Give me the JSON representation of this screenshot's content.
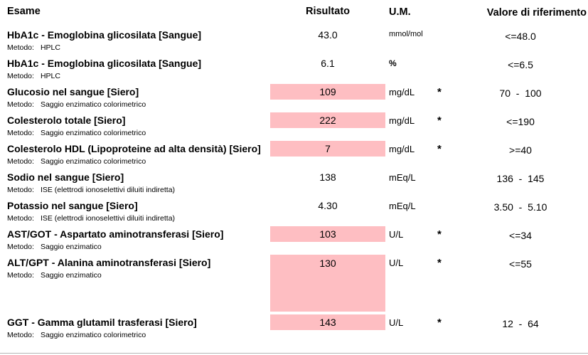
{
  "report": {
    "columns": {
      "esame": "Esame",
      "risultato": "Risultato",
      "um": "U.M.",
      "riferimento": "Valore di riferimento"
    },
    "labels": {
      "metodo": "Metodo:"
    },
    "highlight_color": "#febec2",
    "rows": [
      {
        "name": "HbA1c - Emoglobina glicosilata [Sangue]",
        "method": "HPLC",
        "result": "43.0",
        "unit": "mmol/mol",
        "flag": "",
        "reference": "<=48.0",
        "highlight": false
      },
      {
        "name": "HbA1c - Emoglobina glicosilata [Sangue]",
        "method": "HPLC",
        "result": "6.1",
        "unit": "%",
        "flag": "",
        "reference": "<=6.5",
        "highlight": false
      },
      {
        "name": "Glucosio nel sangue [Siero]",
        "method": "Saggio enzimatico colorimetrico",
        "result": "109",
        "unit": "mg/dL",
        "flag": "*",
        "reference": "70  -  100",
        "highlight": true
      },
      {
        "name": "Colesterolo totale [Siero]",
        "method": "Saggio enzimatico colorimetrico",
        "result": "222",
        "unit": "mg/dL",
        "flag": "*",
        "reference": "<=190",
        "highlight": true
      },
      {
        "name": "Colesterolo HDL (Lipoproteine ad alta densità) [Siero]",
        "method": "Saggio enzimatico colorimetrico",
        "result": "7",
        "unit": "mg/dL",
        "flag": "*",
        "reference": ">=40",
        "highlight": true
      },
      {
        "name": "Sodio nel sangue [Siero]",
        "method": "ISE (elettrodi ionoselettivi diluiti indiretta)",
        "result": "138",
        "unit": "mEq/L",
        "flag": "",
        "reference": "136  -  145",
        "highlight": false
      },
      {
        "name": "Potassio nel sangue [Siero]",
        "method": "ISE (elettrodi ionoselettivi diluiti indiretta)",
        "result": "4.30",
        "unit": "mEq/L",
        "flag": "",
        "reference": "3.50  -  5.10",
        "highlight": false
      },
      {
        "name": "AST/GOT - Aspartato aminotransferasi [Siero]",
        "method": "Saggio enzimatico",
        "result": "103",
        "unit": "U/L",
        "flag": "*",
        "reference": "<=34",
        "highlight": true
      },
      {
        "name": "ALT/GPT - Alanina aminotransferasi [Siero]",
        "method": "Saggio enzimatico",
        "result": "130",
        "unit": "U/L",
        "flag": "*",
        "reference": "<=55",
        "highlight": true,
        "highlight_tall": true
      },
      {
        "name": "GGT - Gamma glutamil trasferasi [Siero]",
        "method": "Saggio enzimatico colorimetrico",
        "result": "143",
        "unit": "U/L",
        "flag": "*",
        "reference": "12  -  64",
        "highlight": true
      }
    ]
  }
}
